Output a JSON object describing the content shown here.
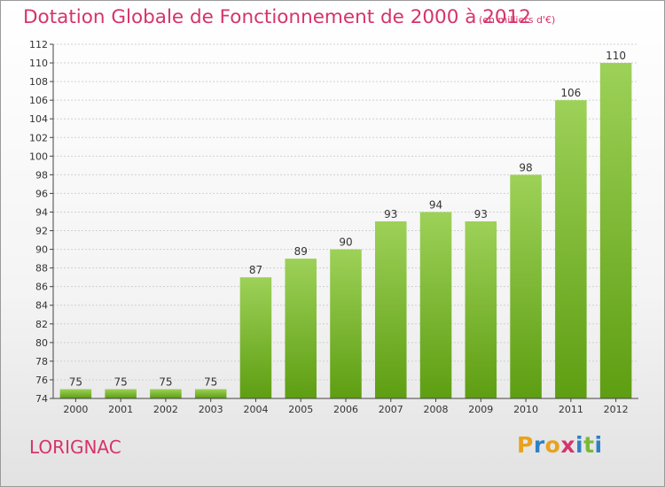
{
  "header": {
    "title": "Dotation Globale de Fonctionnement de 2000 à 2012",
    "units": "(en milliers d'€)"
  },
  "footer": {
    "commune": "LORIGNAC",
    "logo": "Proxiti"
  },
  "colors": {
    "accent": "#d6336c",
    "bar_top": "#9dd158",
    "bar_bottom": "#5e9e12",
    "grid": "#d0d0d0",
    "axis": "#444444",
    "logo_letters": [
      "#e8a21d",
      "#2f80c7",
      "#e8a21d",
      "#d6336c",
      "#2f80c7",
      "#7ab83a",
      "#2f80c7"
    ]
  },
  "chart_data": {
    "type": "bar",
    "title": "Dotation Globale de Fonctionnement de 2000 à 2012",
    "subtitle": "(en milliers d'€)",
    "categories": [
      "2000",
      "2001",
      "2002",
      "2003",
      "2004",
      "2005",
      "2006",
      "2007",
      "2008",
      "2009",
      "2010",
      "2011",
      "2012"
    ],
    "values": [
      75,
      75,
      75,
      75,
      87,
      89,
      90,
      93,
      94,
      93,
      98,
      106,
      110
    ],
    "ylim": [
      74,
      112
    ],
    "yticks": [
      74,
      76,
      78,
      80,
      82,
      84,
      86,
      88,
      90,
      92,
      94,
      96,
      98,
      100,
      102,
      104,
      106,
      108,
      110,
      112
    ],
    "grid": true,
    "data_labels": true
  }
}
